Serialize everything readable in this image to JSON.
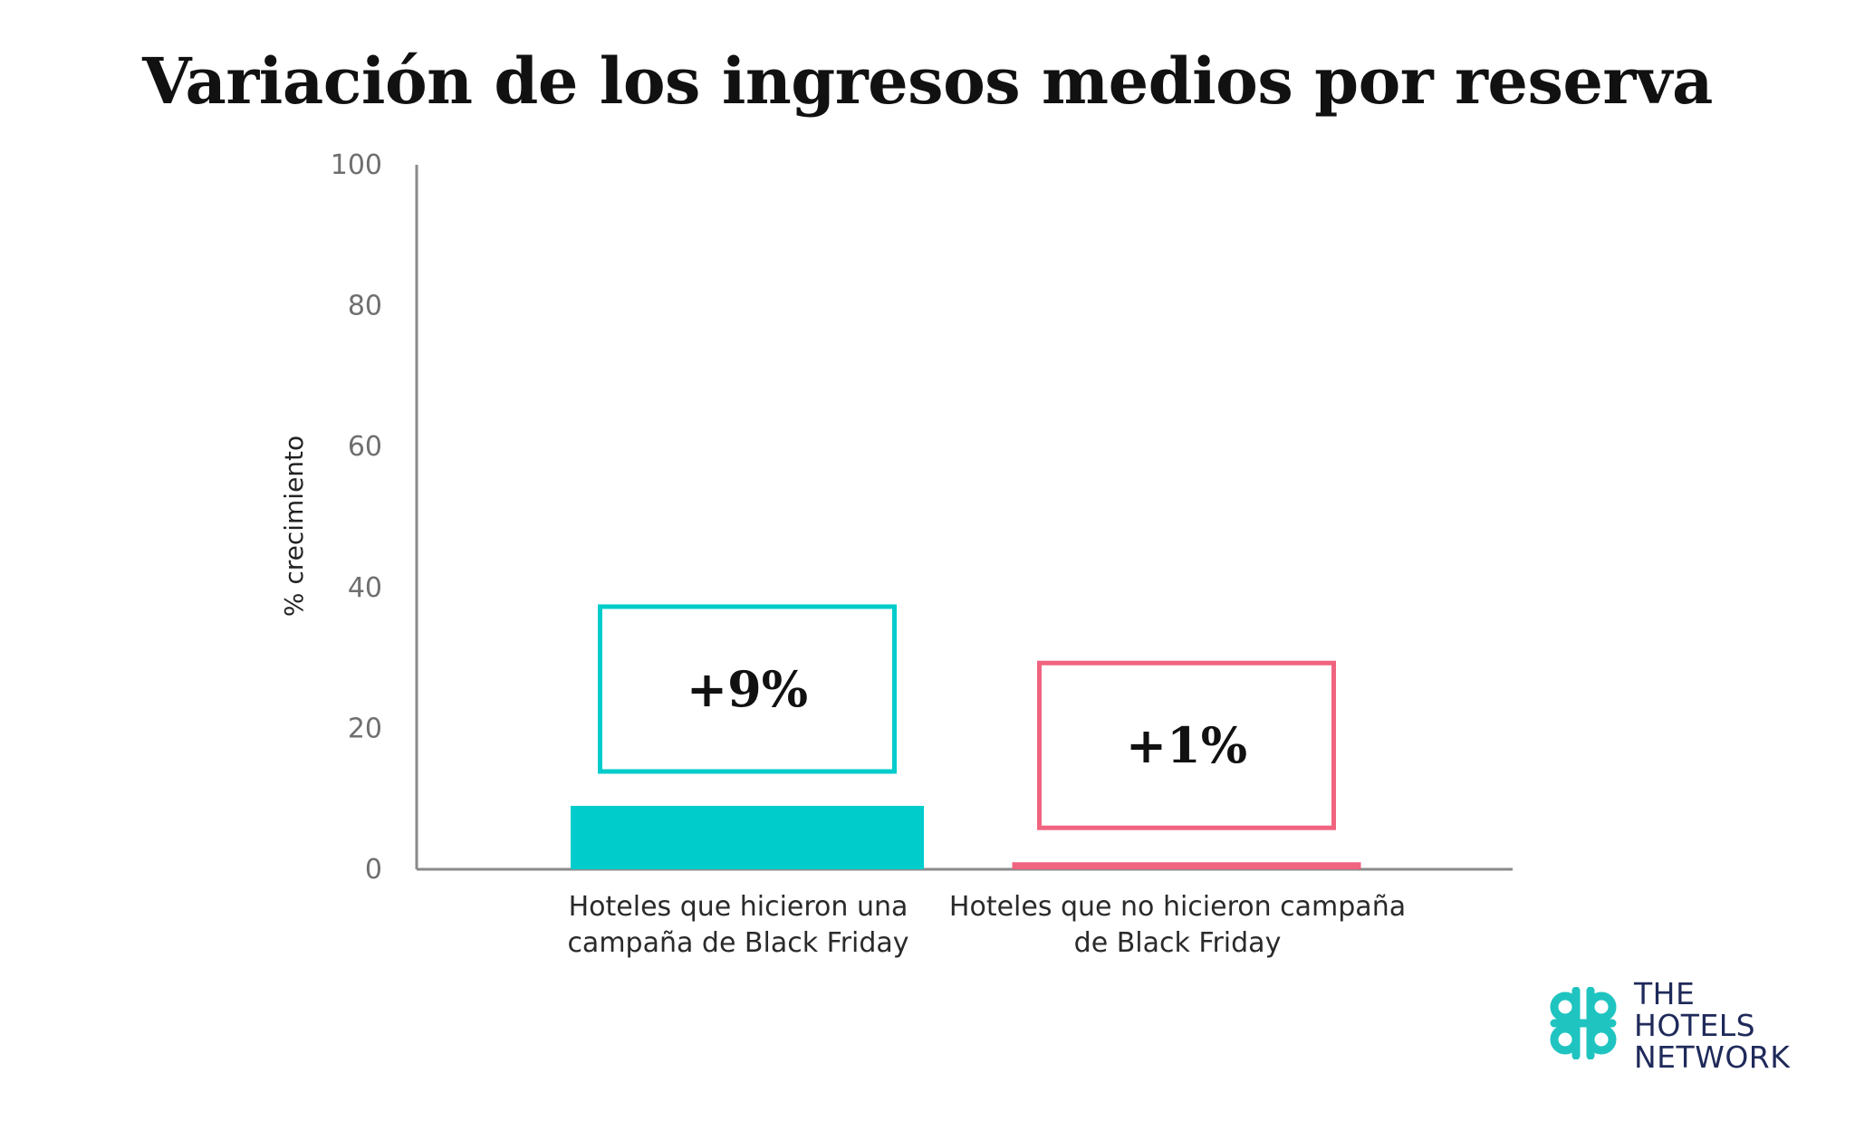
{
  "chart_data": {
    "type": "bar",
    "title": "Variación de los ingresos medios por reserva",
    "ylabel": "% crecimiento",
    "xlabel": "",
    "ylim": [
      0,
      100
    ],
    "yticks": [
      "0",
      "20",
      "40",
      "60",
      "80",
      "100"
    ],
    "grid": false,
    "categories": [
      [
        "Hoteles que hicieron una",
        "campaña de Black Friday"
      ],
      [
        "Hoteles que no hicieron campaña",
        "de Black Friday"
      ]
    ],
    "values": [
      9,
      1
    ],
    "colors": [
      "#00cccc",
      "#f06480"
    ],
    "annotations": [
      "+9%",
      "+1%"
    ]
  },
  "logo": {
    "lines": [
      "THE",
      "HOTELS",
      "NETWORK"
    ],
    "mark_color": "#1fc4c0",
    "text_color": "#1f2a5a"
  }
}
